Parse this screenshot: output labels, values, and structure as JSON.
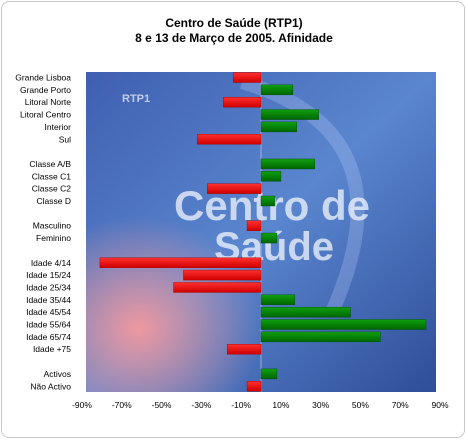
{
  "title_line1": "Centro de Saúde (RTP1)",
  "title_line2": "8 e 13 de Março de 2005. Afinidade",
  "colors": {
    "negative": "#ff0000",
    "positive": "#008000"
  },
  "chart_data": {
    "type": "bar",
    "orientation": "horizontal",
    "title": "Centro de Saúde (RTP1) 8 e 13 de Março de 2005. Afinidade",
    "xlabel": "",
    "ylabel": "",
    "xlim": [
      -90,
      90
    ],
    "x_ticks": [
      "-90%",
      "-70%",
      "-50%",
      "-30%",
      "-10%",
      "10%",
      "30%",
      "50%",
      "70%",
      "90%"
    ],
    "x_tick_values": [
      -90,
      -70,
      -50,
      -30,
      -10,
      10,
      30,
      50,
      70,
      90
    ],
    "categories": [
      "Grande Lisboa",
      "Grande Porto",
      "Litoral Norte",
      "Litoral Centro",
      "Interior",
      "Sul",
      "",
      "Classe A/B",
      "Classe C1",
      "Classe C2",
      "Classe D",
      "",
      "Masculino",
      "Feminino",
      "",
      "Idade 4/14",
      "Idade 15/24",
      "Idade 25/34",
      "Idade 35/44",
      "Idade 45/54",
      "Idade 55/64",
      "Idade 65/74",
      "Idade +75",
      "",
      "Activos",
      "Não Activo"
    ],
    "values": [
      -14,
      16,
      -19,
      29,
      18,
      -32,
      null,
      27,
      10,
      -27,
      7,
      null,
      -7,
      8,
      null,
      -81,
      -39,
      -44,
      17,
      45,
      83,
      60,
      -17,
      null,
      8,
      -7
    ],
    "background_image_caption": "Centro de Saúde",
    "background_logo_text": "RTP1"
  }
}
